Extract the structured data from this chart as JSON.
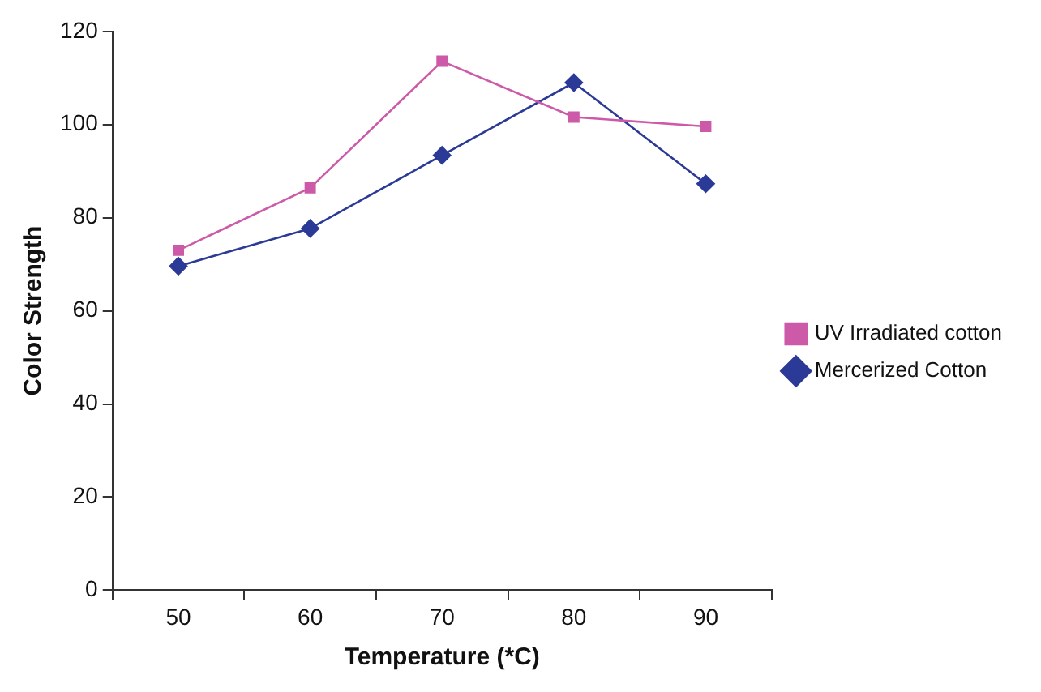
{
  "chart_data": {
    "type": "line",
    "xlabel": "Temperature (*C)",
    "ylabel": "Color Strength",
    "categories": [
      "50",
      "60",
      "70",
      "80",
      "90"
    ],
    "series": [
      {
        "name": "UV Irradiated cotton",
        "color": "#cc5aa8",
        "marker": "square",
        "values": [
          73.0,
          86.4,
          113.6,
          101.6,
          99.6
        ]
      },
      {
        "name": "Mercerized Cotton",
        "color": "#2b3a96",
        "marker": "diamond",
        "values": [
          69.6,
          77.7,
          93.4,
          109.0,
          87.3
        ]
      }
    ],
    "ylim": [
      0,
      120
    ],
    "yticks": [
      0,
      20,
      40,
      60,
      80,
      100,
      120
    ],
    "grid": false,
    "legend": "right",
    "line_style": "solid"
  }
}
